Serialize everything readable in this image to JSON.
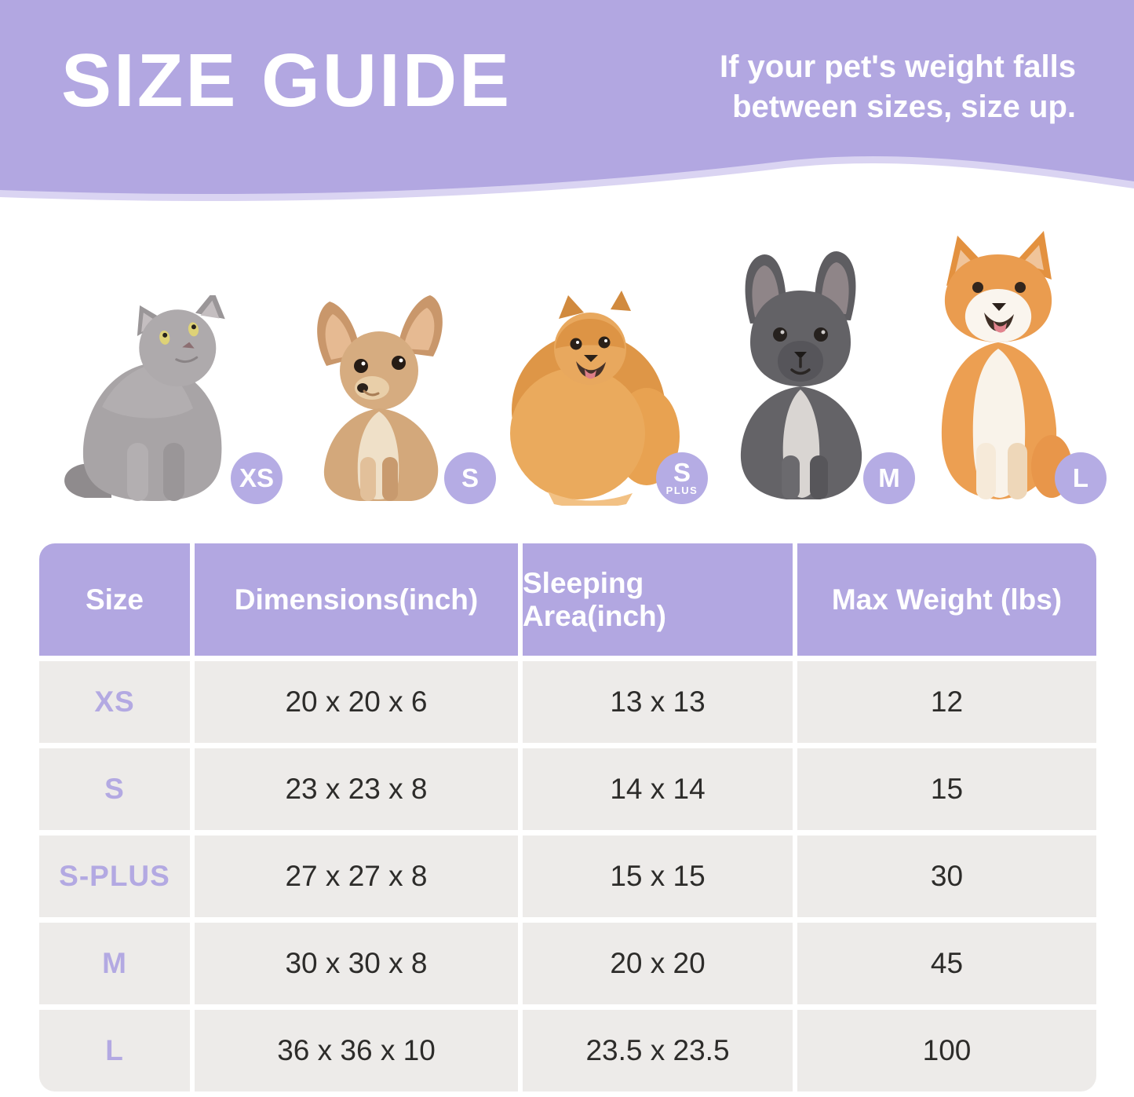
{
  "header": {
    "title": "SIZE GUIDE",
    "note_line1": "If your pet's weight falls",
    "note_line2": "between sizes, size up."
  },
  "pets": [
    {
      "label": "cat",
      "badge": "XS"
    },
    {
      "label": "chihuahua",
      "badge": "S"
    },
    {
      "label": "pomeranian",
      "badge": "S",
      "badge_sub": "PLUS"
    },
    {
      "label": "french-bulldog",
      "badge": "M"
    },
    {
      "label": "shiba-inu",
      "badge": "L"
    }
  ],
  "table": {
    "columns": [
      "Size",
      "Dimensions(inch)",
      "Sleeping Area(inch)",
      "Max Weight (lbs)"
    ],
    "rows": [
      [
        "XS",
        "20 x 20 x 6",
        "13 x 13",
        "12"
      ],
      [
        "S",
        "23 x 23 x 8",
        "14 x 14",
        "15"
      ],
      [
        "S-PLUS",
        "27 x 27 x 8",
        "15 x 15",
        "30"
      ],
      [
        "M",
        "30 x 30 x 8",
        "20 x 20",
        "45"
      ],
      [
        "L",
        "36 x 36 x 10",
        "23.5 x 23.5",
        "100"
      ]
    ]
  },
  "colors": {
    "purple": "#b2a7e1",
    "purple_light": "#cdc5ee",
    "badge": "#b5ace4",
    "row_bg": "#edebe9",
    "size_text": "#b3a9e2",
    "text_dark": "#2d2c2a"
  }
}
